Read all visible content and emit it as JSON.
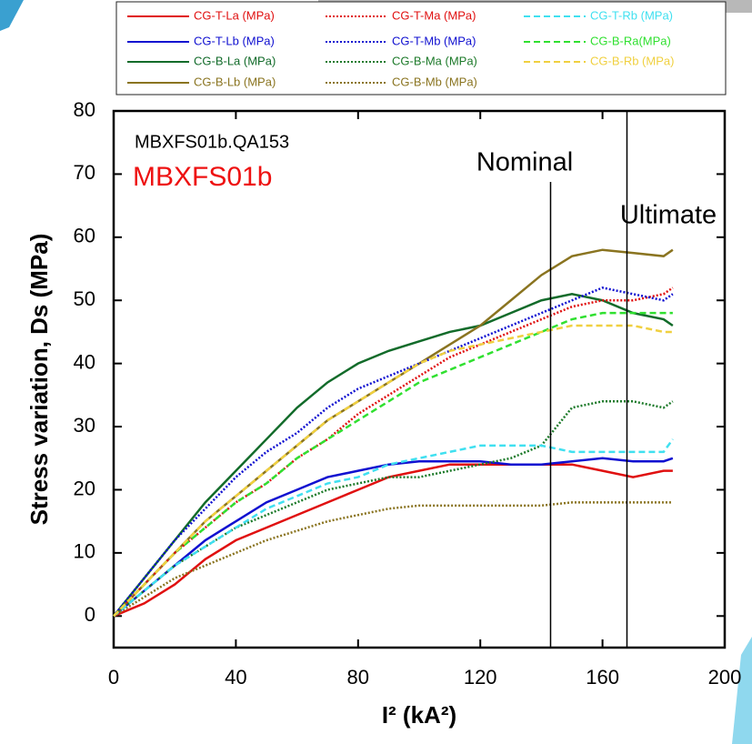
{
  "chart_data": {
    "type": "line",
    "x_label": "I² (kA²)",
    "y_label": "Stress variation, Ds (MPa)",
    "x": [
      0,
      10,
      20,
      30,
      40,
      50,
      60,
      70,
      80,
      90,
      100,
      110,
      120,
      130,
      140,
      150,
      160,
      170,
      180,
      183
    ],
    "xlim": [
      0,
      200
    ],
    "xticks": [
      0,
      40,
      80,
      120,
      160,
      200
    ],
    "ylim": [
      -5,
      80
    ],
    "yticks": [
      0,
      10,
      20,
      30,
      40,
      50,
      60,
      70,
      80
    ],
    "annotations": [
      {
        "text": "MBXFS01b.QA153"
      },
      {
        "text": "MBXFS01b",
        "color": "#ee1111"
      },
      {
        "text": "Nominal",
        "x": 143
      },
      {
        "text": "Ultimate",
        "x": 168
      }
    ],
    "series": [
      {
        "name": "CG-T-La (MPa)",
        "color": "#e01010",
        "style": "solid",
        "values": [
          0,
          2,
          5,
          9,
          12,
          14,
          16,
          18,
          20,
          22,
          23,
          24,
          24,
          24,
          24,
          24,
          23,
          22,
          23,
          23
        ]
      },
      {
        "name": "CG-T-Lb (MPa)",
        "color": "#1010d0",
        "style": "solid",
        "values": [
          0,
          4,
          8,
          12,
          15,
          18,
          20,
          22,
          23,
          24,
          24.5,
          24.5,
          24.5,
          24,
          24,
          24.5,
          25,
          24.5,
          24.5,
          25
        ]
      },
      {
        "name": "CG-B-La (MPa)",
        "color": "#126b2a",
        "style": "solid",
        "values": [
          0,
          6,
          12,
          18,
          23,
          28,
          33,
          37,
          40,
          42,
          43.5,
          45,
          46,
          48,
          50,
          51,
          50,
          48,
          47,
          46
        ]
      },
      {
        "name": "CG-B-Lb (MPa)",
        "color": "#8a7420",
        "style": "solid",
        "values": [
          0,
          5,
          10,
          15,
          19,
          23,
          27,
          31,
          34,
          37,
          40,
          43,
          46,
          50,
          54,
          57,
          58,
          57.5,
          57,
          58
        ]
      },
      {
        "name": "CG-T-Ma (MPa)",
        "color": "#e01010",
        "style": "dotted",
        "values": [
          0,
          5,
          10,
          14,
          18,
          21,
          25,
          28,
          32,
          35,
          38,
          41,
          43,
          45,
          47,
          49,
          50,
          50,
          51,
          52
        ]
      },
      {
        "name": "CG-T-Mb (MPa)",
        "color": "#1010d0",
        "style": "dotted",
        "values": [
          0,
          6,
          12,
          17,
          22,
          26,
          29,
          33,
          36,
          38,
          40,
          42,
          44,
          46,
          48,
          50,
          52,
          51,
          50,
          51
        ]
      },
      {
        "name": "CG-B-Ma (MPa)",
        "color": "#1d7a2a",
        "style": "dotted",
        "values": [
          0,
          4,
          8,
          11,
          14,
          16,
          18,
          20,
          21,
          22,
          22,
          23,
          24,
          25,
          27,
          33,
          34,
          34,
          33,
          34
        ]
      },
      {
        "name": "CG-B-Mb (MPa)",
        "color": "#8a7420",
        "style": "dotted",
        "values": [
          0,
          3,
          6,
          8,
          10,
          12,
          13.5,
          15,
          16,
          17,
          17.5,
          17.5,
          17.5,
          17.5,
          17.5,
          18,
          18,
          18,
          18,
          18
        ]
      },
      {
        "name": "CG-T-Rb (MPa)",
        "color": "#40e0f0",
        "style": "dashed",
        "values": [
          0,
          4,
          8,
          11,
          14,
          17,
          19,
          21,
          22,
          24,
          25,
          26,
          27,
          27,
          27,
          26,
          26,
          26,
          26,
          28
        ]
      },
      {
        "name": "CG-B-Ra(MPa)",
        "color": "#30e030",
        "style": "dashed",
        "values": [
          0,
          5,
          10,
          14,
          18,
          21,
          25,
          28,
          31,
          34,
          37,
          39,
          41,
          43,
          45,
          47,
          48,
          48,
          48,
          48
        ]
      },
      {
        "name": "CG-B-Rb (MPa)",
        "color": "#f0d040",
        "style": "dashed",
        "values": [
          0,
          5,
          10,
          15,
          19,
          23,
          27,
          31,
          34,
          37,
          40,
          42,
          43,
          44,
          45,
          46,
          46,
          46,
          45,
          45
        ]
      }
    ]
  }
}
